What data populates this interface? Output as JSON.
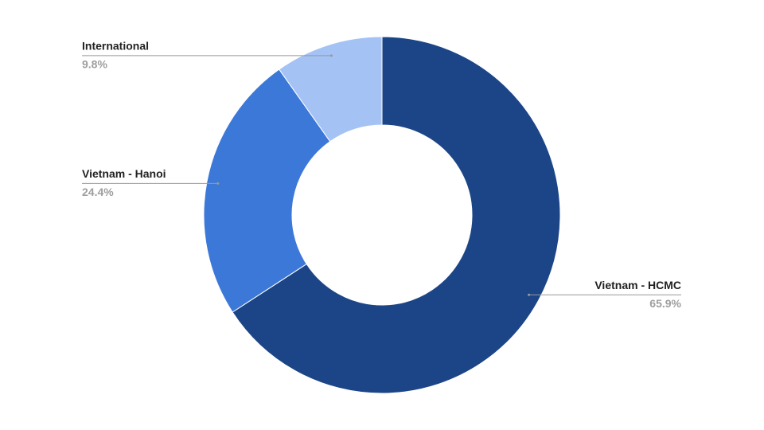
{
  "chart_data": {
    "type": "donut",
    "categories": [
      "Vietnam - HCMC",
      "Vietnam - Hanoi",
      "International"
    ],
    "values": [
      65.9,
      24.4,
      9.8
    ],
    "value_labels": [
      "65.9%",
      "24.4%",
      "9.8%"
    ],
    "colors": [
      "#1c4587",
      "#3c78d8",
      "#a4c2f4"
    ]
  }
}
